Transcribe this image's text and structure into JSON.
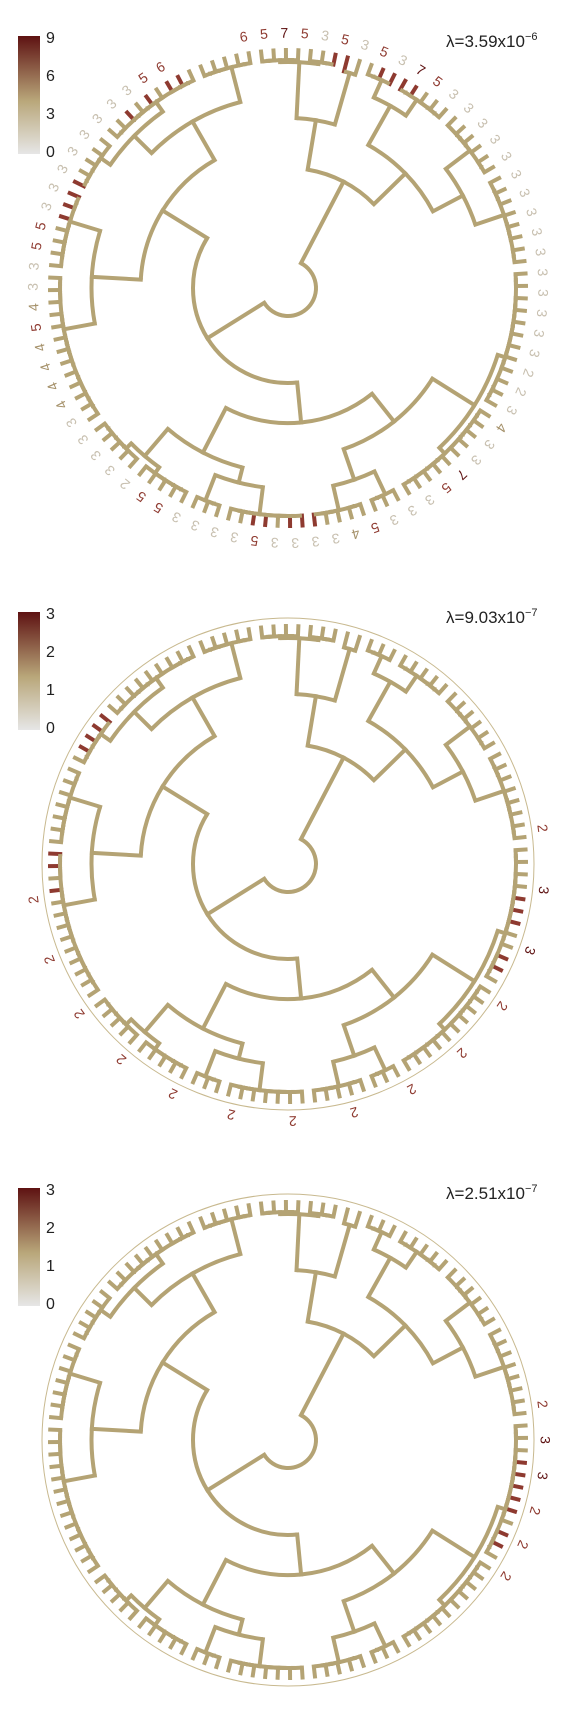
{
  "panels": [
    {
      "lambda": {
        "symbol": "λ",
        "eq": "=",
        "mantissa": "3.59x10",
        "exponent": "−6"
      },
      "legend": {
        "ticks": [
          "9",
          "6",
          "3",
          "0"
        ],
        "max": 9
      },
      "tip_labels": [
        "6",
        "5",
        "7",
        "5",
        "3",
        "5",
        "3",
        "5",
        "3",
        "7",
        "5",
        "3",
        "3",
        "3",
        "3",
        "3",
        "3",
        "3",
        "3",
        "3",
        "3",
        "3",
        "3",
        "3",
        "3",
        "3",
        "2",
        "2",
        "3",
        "4",
        "3",
        "3",
        "7",
        "5",
        "3",
        "3",
        "3",
        "5",
        "4",
        "3",
        "3",
        "3",
        "3",
        "5",
        "3",
        "3",
        "3",
        "3",
        "5",
        "5",
        "2",
        "3",
        "3",
        "3",
        "3",
        "4",
        "4",
        "4",
        "4",
        "5",
        "4",
        "3",
        "3",
        "5",
        "5",
        "3",
        "3",
        "3",
        "3",
        "3",
        "3",
        "3",
        "3",
        "5",
        "6"
      ]
    },
    {
      "lambda": {
        "symbol": "λ",
        "eq": "=",
        "mantissa": "9.03x10",
        "exponent": "−7"
      },
      "legend": {
        "ticks": [
          "3",
          "2",
          "1",
          "0"
        ],
        "max": 3
      },
      "tip_labels": [
        "2",
        "3",
        "3",
        "2",
        "2",
        "2",
        "2",
        "2",
        "2",
        "2",
        "2",
        "2",
        "2",
        "2"
      ]
    },
    {
      "lambda": {
        "symbol": "λ",
        "eq": "=",
        "mantissa": "2.51x10",
        "exponent": "−7"
      },
      "legend": {
        "ticks": [
          "3",
          "2",
          "1",
          "0"
        ],
        "max": 3
      },
      "tip_labels": [
        "2",
        "3",
        "3",
        "2",
        "2",
        "2"
      ]
    }
  ],
  "colors": {
    "low": "#d8d8d8",
    "mid": "#b9a77a",
    "high": "#5e1212",
    "branch": "#b4a374"
  }
}
